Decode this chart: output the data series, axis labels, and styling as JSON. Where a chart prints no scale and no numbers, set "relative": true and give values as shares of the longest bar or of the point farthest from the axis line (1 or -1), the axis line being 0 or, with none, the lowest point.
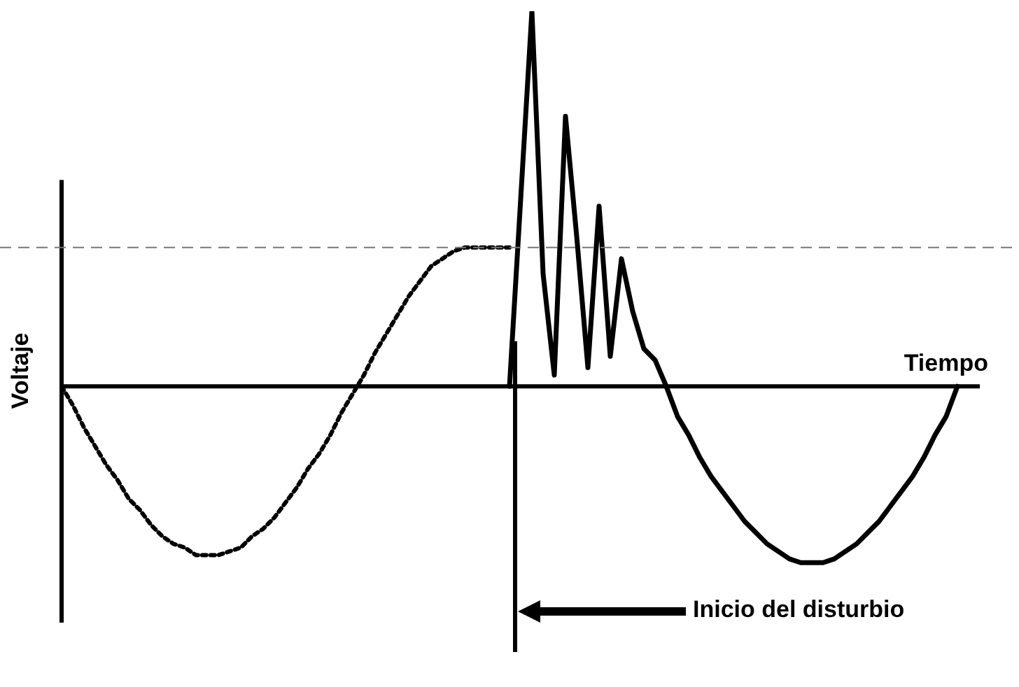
{
  "chart_data": {
    "type": "line",
    "relative": true,
    "xlabel": "Tiempo",
    "ylabel": "Voltaje",
    "tick_labels": false,
    "legend": false,
    "marker": "none",
    "categories": [
      null,
      null,
      null,
      null,
      null,
      null,
      null,
      null,
      null,
      null,
      null,
      null,
      null,
      null,
      null,
      null,
      null,
      null,
      null,
      null,
      null,
      null,
      null,
      null,
      null,
      null,
      null,
      null,
      null,
      null,
      null,
      null,
      null,
      null,
      null,
      null,
      null,
      null,
      null,
      null,
      null,
      null,
      null,
      null,
      null,
      null,
      null,
      null,
      null,
      null,
      null,
      null,
      null,
      null,
      null,
      null,
      null,
      null,
      null,
      null,
      null,
      null,
      null,
      null,
      null,
      null,
      null,
      null,
      null,
      null,
      null,
      null,
      null,
      null,
      null,
      null,
      null,
      null,
      null,
      null,
      null
    ],
    "series": [
      {
        "color": "#000000",
        "line_style": "dotted",
        "values": [
          0,
          -0.05,
          -0.11,
          -0.16,
          -0.21,
          -0.25,
          -0.3,
          -0.33,
          -0.37,
          -0.4,
          -0.42,
          -0.43,
          -0.45,
          -0.45,
          -0.45,
          -0.44,
          -0.43,
          -0.4,
          -0.38,
          -0.35,
          -0.31,
          -0.27,
          -0.22,
          -0.18,
          -0.13,
          -0.07,
          -0.02,
          0.03,
          0.09,
          0.14,
          0.19,
          0.24,
          0.28,
          0.32,
          0.34,
          0.36,
          0.37,
          0.37,
          0.37,
          0.37,
          0.37,
          null,
          null,
          null,
          null,
          null,
          null,
          null,
          null,
          null,
          null,
          null,
          null,
          null,
          null,
          null,
          null,
          null,
          null,
          null,
          null,
          null,
          null,
          null,
          null,
          null,
          null,
          null,
          null,
          null,
          null,
          null,
          null,
          null,
          null,
          null,
          null,
          null,
          null,
          null,
          null
        ]
      },
      {
        "color": "#000000",
        "line_style": "solid",
        "values": [
          null,
          null,
          null,
          null,
          null,
          null,
          null,
          null,
          null,
          null,
          null,
          null,
          null,
          null,
          null,
          null,
          null,
          null,
          null,
          null,
          null,
          null,
          null,
          null,
          null,
          null,
          null,
          null,
          null,
          null,
          null,
          null,
          null,
          null,
          null,
          null,
          null,
          null,
          null,
          null,
          0,
          0.5,
          1,
          0.3,
          0.03,
          0.72,
          0.4,
          0.05,
          0.48,
          0.08,
          0.34,
          0.2,
          0.1,
          0.07,
          0,
          -0.08,
          -0.13,
          -0.19,
          -0.24,
          -0.28,
          -0.32,
          -0.36,
          -0.39,
          -0.42,
          -0.44,
          -0.46,
          -0.47,
          -0.47,
          -0.47,
          -0.46,
          -0.44,
          -0.42,
          -0.39,
          -0.36,
          -0.32,
          -0.28,
          -0.24,
          -0.19,
          -0.13,
          -0.08,
          0
        ]
      }
    ],
    "ref_lines": [
      {
        "axis": "y",
        "value": 0.37,
        "color": "#777777",
        "line_style": "dashed"
      }
    ],
    "annotations": [
      "Inicio del disturbio"
    ]
  }
}
